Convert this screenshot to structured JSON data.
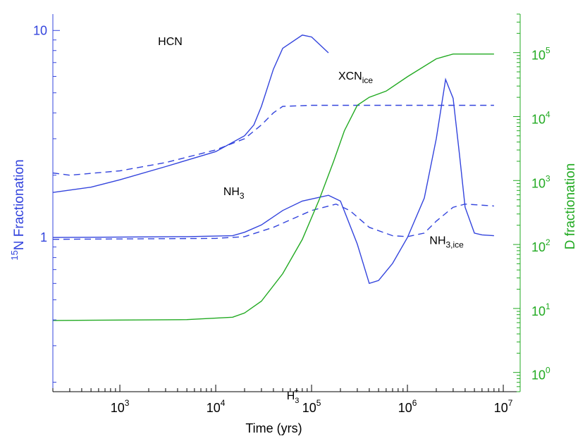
{
  "chart_data": {
    "type": "line",
    "title": "",
    "xlabel": "Time (yrs)",
    "x_scale": "log",
    "xlim": [
      200,
      15000000
    ],
    "x_ticks": [
      {
        "value": 1000,
        "base": "10",
        "exp": "3"
      },
      {
        "value": 10000,
        "base": "10",
        "exp": "4"
      },
      {
        "value": 100000,
        "base": "10",
        "exp": "5"
      },
      {
        "value": 1000000,
        "base": "10",
        "exp": "6"
      },
      {
        "value": 10000000,
        "base": "10",
        "exp": "7"
      }
    ],
    "y_left": {
      "label_sup": "15",
      "label_main": "N Fractionation",
      "scale": "log",
      "ylim": [
        0.18,
        12
      ],
      "color": "#3344dd",
      "ticks": [
        {
          "value": 1,
          "label": "1"
        },
        {
          "value": 10,
          "label": "10"
        }
      ]
    },
    "y_right": {
      "label": "D fractionation",
      "scale": "log",
      "ylim": [
        0.5,
        400000
      ],
      "color": "#22aa22",
      "ticks": [
        {
          "value": 1,
          "base": "10",
          "exp": "0"
        },
        {
          "value": 10,
          "base": "10",
          "exp": "1"
        },
        {
          "value": 100,
          "base": "10",
          "exp": "2"
        },
        {
          "value": 1000,
          "base": "10",
          "exp": "3"
        },
        {
          "value": 10000,
          "base": "10",
          "exp": "4"
        },
        {
          "value": 100000,
          "base": "10",
          "exp": "5"
        }
      ]
    },
    "series": [
      {
        "name": "HCN",
        "axis": "left",
        "color": "#3344dd",
        "dash": false,
        "label": {
          "main": "HCN",
          "sub": "",
          "sup": "",
          "x": 2500,
          "y": 8.5
        },
        "points": [
          [
            200,
            1.65
          ],
          [
            500,
            1.75
          ],
          [
            1000,
            1.9
          ],
          [
            3000,
            2.2
          ],
          [
            10000,
            2.6
          ],
          [
            20000,
            3.1
          ],
          [
            25000,
            3.5
          ],
          [
            30000,
            4.3
          ],
          [
            40000,
            6.5
          ],
          [
            50000,
            8.2
          ],
          [
            80000,
            9.5
          ],
          [
            100000,
            9.3
          ],
          [
            150000,
            7.8
          ]
        ]
      },
      {
        "name": "XCN_ice",
        "axis": "left",
        "color": "#3344dd",
        "dash": true,
        "label": {
          "main": "XCN",
          "sub": "ice",
          "sup": "",
          "x": 190000,
          "y": 5.8
        },
        "points": [
          [
            200,
            2.05
          ],
          [
            300,
            2.0
          ],
          [
            1000,
            2.1
          ],
          [
            3000,
            2.3
          ],
          [
            10000,
            2.65
          ],
          [
            20000,
            3.0
          ],
          [
            30000,
            3.5
          ],
          [
            40000,
            4.0
          ],
          [
            50000,
            4.3
          ],
          [
            100000,
            4.35
          ],
          [
            8000000,
            4.35
          ]
        ]
      },
      {
        "name": "NH3",
        "axis": "left",
        "color": "#3344dd",
        "dash": false,
        "label": {
          "main": "NH",
          "sub": "3",
          "sup": "",
          "x": 12000,
          "y": 1.6
        },
        "points": [
          [
            200,
            1.0
          ],
          [
            5000,
            1.01
          ],
          [
            15000,
            1.02
          ],
          [
            20000,
            1.06
          ],
          [
            30000,
            1.15
          ],
          [
            50000,
            1.35
          ],
          [
            80000,
            1.5
          ],
          [
            150000,
            1.6
          ],
          [
            200000,
            1.5
          ],
          [
            300000,
            0.93
          ],
          [
            400000,
            0.6
          ],
          [
            500000,
            0.62
          ],
          [
            700000,
            0.75
          ],
          [
            1000000,
            1.0
          ],
          [
            1500000,
            1.55
          ],
          [
            2000000,
            3.0
          ],
          [
            2500000,
            5.8
          ],
          [
            3000000,
            4.7
          ],
          [
            3500000,
            2.5
          ],
          [
            4000000,
            1.4
          ],
          [
            5000000,
            1.05
          ],
          [
            6000000,
            1.03
          ],
          [
            8000000,
            1.02
          ]
        ]
      },
      {
        "name": "NH3_ice",
        "axis": "left",
        "color": "#3344dd",
        "dash": true,
        "label": {
          "main": "NH",
          "sub": "3,ice",
          "sup": "",
          "x": 1700000,
          "y": 0.93
        },
        "points": [
          [
            200,
            0.98
          ],
          [
            10000,
            0.99
          ],
          [
            20000,
            1.01
          ],
          [
            40000,
            1.12
          ],
          [
            100000,
            1.35
          ],
          [
            180000,
            1.45
          ],
          [
            250000,
            1.35
          ],
          [
            400000,
            1.12
          ],
          [
            700000,
            1.02
          ],
          [
            1000000,
            1.01
          ],
          [
            1500000,
            1.05
          ],
          [
            2000000,
            1.2
          ],
          [
            3000000,
            1.4
          ],
          [
            4000000,
            1.45
          ],
          [
            8000000,
            1.42
          ]
        ]
      },
      {
        "name": "H3+",
        "axis": "right",
        "color": "#22aa22",
        "dash": false,
        "label": {
          "main": "H",
          "sub": "3",
          "sup": "+",
          "x": 55000,
          "y": 0.38
        },
        "points": [
          [
            200,
            6.5
          ],
          [
            5000,
            6.7
          ],
          [
            15000,
            7.3
          ],
          [
            20000,
            8.5
          ],
          [
            30000,
            13
          ],
          [
            50000,
            35
          ],
          [
            80000,
            120
          ],
          [
            120000,
            500
          ],
          [
            170000,
            2000
          ],
          [
            220000,
            6000
          ],
          [
            300000,
            15000
          ],
          [
            400000,
            20000
          ],
          [
            600000,
            25000
          ],
          [
            1000000,
            42000
          ],
          [
            2000000,
            80000
          ],
          [
            3000000,
            95000
          ],
          [
            5000000,
            95000
          ],
          [
            8000000,
            95000
          ]
        ]
      }
    ]
  }
}
